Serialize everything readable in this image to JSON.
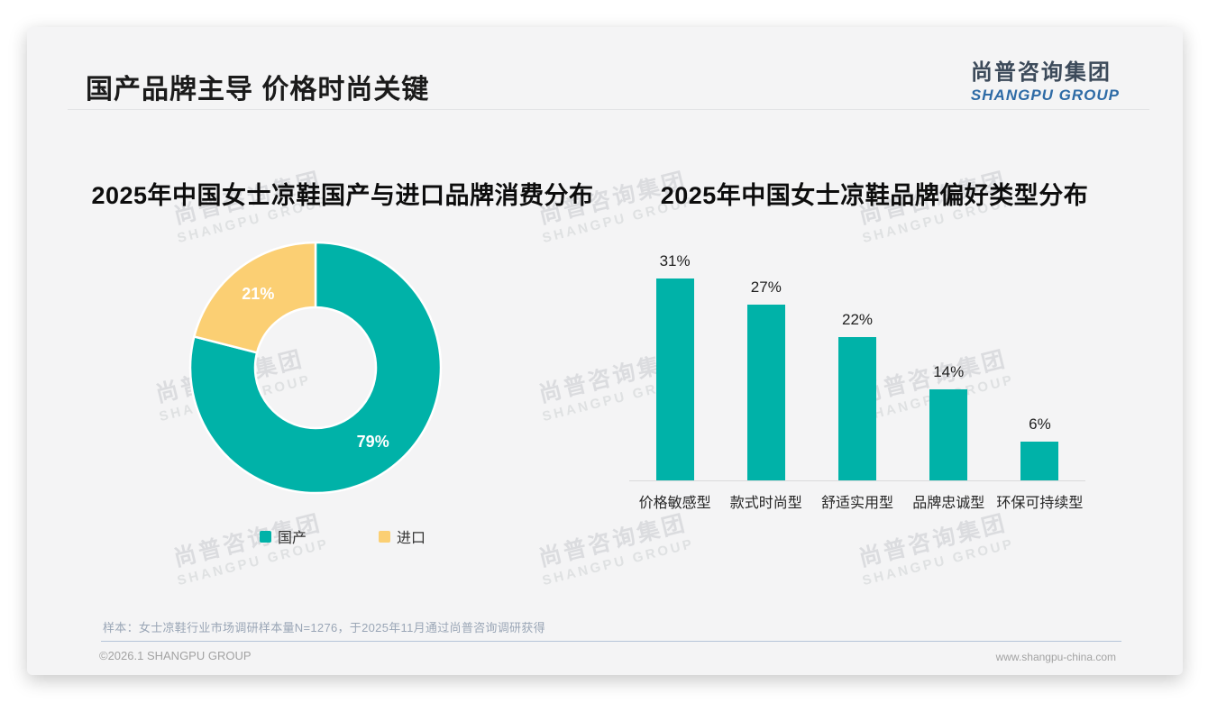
{
  "page": {
    "title": "国产品牌主导 价格时尚关键",
    "logo": {
      "cn": "尚普咨询集团",
      "en": "SHANGPU GROUP"
    },
    "watermark": {
      "cn": "尚普咨询集团",
      "en": "SHANGPU GROUP"
    },
    "footnote": "样本：女士凉鞋行业市场调研样本量N=1276，于2025年11月通过尚普咨询调研获得",
    "footer_left": "©2026.1 SHANGPU GROUP",
    "footer_right": "www.shangpu-china.com"
  },
  "colors": {
    "teal": "#00b2a8",
    "yellow": "#fbcf73",
    "logo_blue": "#2e6ba6",
    "logo_dark": "#3c4a5a",
    "slide_bg": "#f4f4f5"
  },
  "chart_data": [
    {
      "type": "pie",
      "subtype": "donut",
      "title": "2025年中国女士凉鞋国产与进口品牌消费分布",
      "start_angle": "top, clockwise",
      "inner_radius_ratio": 0.48,
      "segments": [
        {
          "label": "国产",
          "value": 79,
          "color": "#00b2a8"
        },
        {
          "label": "进口",
          "value": 21,
          "color": "#fbcf73"
        }
      ],
      "value_suffix": "%",
      "data_labels": "inside, white",
      "legend_position": "bottom"
    },
    {
      "type": "bar",
      "title": "2025年中国女士凉鞋品牌偏好类型分布",
      "categories": [
        "价格敏感型",
        "款式时尚型",
        "舒适实用型",
        "品牌忠诚型",
        "环保可持续型"
      ],
      "values": [
        31,
        27,
        22,
        14,
        6
      ],
      "value_suffix": "%",
      "bar_color": "#00b2a8",
      "ylim": [
        0,
        33
      ],
      "grid": false,
      "data_labels": "above bars"
    }
  ]
}
